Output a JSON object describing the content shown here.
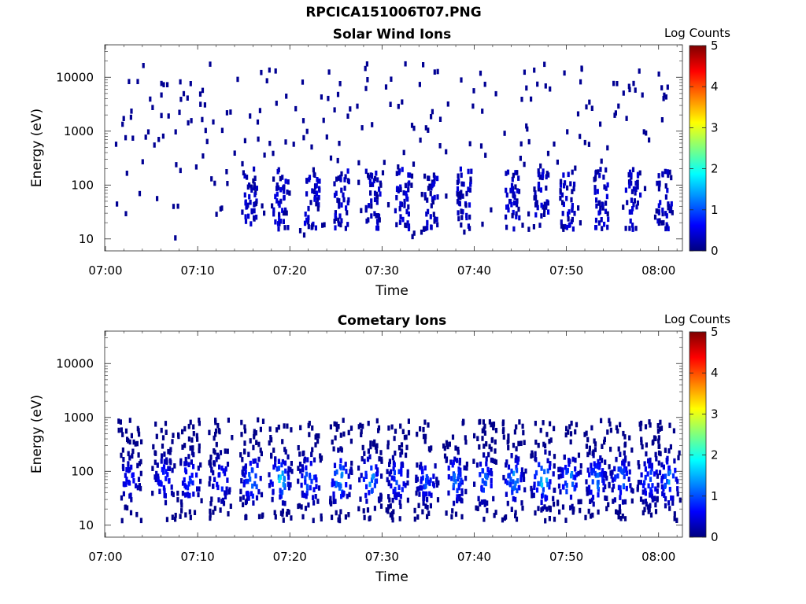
{
  "figure": {
    "title": "RPCICA151006T07.PNG"
  },
  "colormap": {
    "name": "jet",
    "stops": [
      "#00007f",
      "#0000ff",
      "#007fff",
      "#00ffff",
      "#7fff7f",
      "#ffff00",
      "#ff7f00",
      "#ff0000",
      "#7f0000"
    ]
  },
  "chart_data": [
    {
      "type": "heatmap",
      "title": "Solar Wind Ions",
      "xlabel": "Time",
      "ylabel": "Energy (eV)",
      "x_ticks": [
        "07:00",
        "07:10",
        "07:20",
        "07:30",
        "07:40",
        "07:50",
        "08:00"
      ],
      "y_ticks": [
        "10",
        "100",
        "1000",
        "10000"
      ],
      "y_scale": "log",
      "ylim": [
        6,
        40000
      ],
      "colorbar": {
        "label": "Log Counts",
        "ticks": [
          "0",
          "1",
          "2",
          "3",
          "4",
          "5"
        ],
        "range": [
          0,
          5
        ]
      },
      "data_description_note": null,
      "populations": [
        {
          "name": "low-energy bursts",
          "t_centers_min": [
            15.5,
            18.9,
            22.3,
            25.5,
            28.9,
            32.1,
            35.2,
            38.8,
            44.0,
            47.2,
            50.0,
            53.6,
            57.1,
            60.5
          ],
          "e_min": 15,
          "e_max": 200,
          "log_counts_max": 0.4
        },
        {
          "name": "scattered background",
          "t_range_min": [
            1,
            62
          ],
          "e_min": 10,
          "e_max": 18000,
          "log_counts": 0.1
        }
      ]
    },
    {
      "type": "heatmap",
      "title": "Cometary Ions",
      "xlabel": "Time",
      "ylabel": "Energy (eV)",
      "x_ticks": [
        "07:00",
        "07:10",
        "07:20",
        "07:30",
        "07:40",
        "07:50",
        "08:00"
      ],
      "y_ticks": [
        "10",
        "100",
        "1000",
        "10000"
      ],
      "y_scale": "log",
      "ylim": [
        6,
        40000
      ],
      "colorbar": {
        "label": "Log Counts",
        "ticks": [
          "0",
          "1",
          "2",
          "3",
          "4",
          "5"
        ],
        "range": [
          0,
          5
        ]
      },
      "populations": [
        {
          "name": "cometary ion bursts",
          "t_centers_min": [
            2.5,
            6.2,
            9.0,
            12.4,
            15.8,
            18.8,
            22.0,
            25.3,
            28.6,
            31.6,
            34.7,
            37.8,
            41.0,
            44.2,
            47.3,
            50.2,
            53.1,
            55.8,
            58.9,
            61.0
          ],
          "e_peak": 70,
          "e_min": 12,
          "e_max": 900,
          "log_counts_max": [
            0.8,
            1.0,
            1.2,
            1.0,
            1.6,
            1.8,
            1.4,
            1.8,
            1.5,
            1.3,
            1.2,
            1.4,
            1.3,
            1.6,
            2.0,
            1.6,
            1.5,
            1.4,
            1.3,
            1.5
          ]
        }
      ]
    }
  ]
}
